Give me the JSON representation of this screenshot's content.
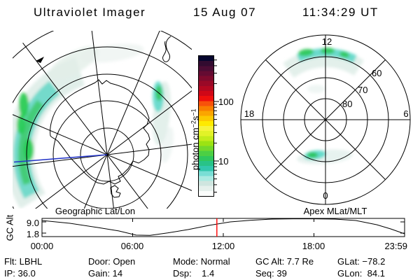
{
  "header": {
    "title": "Ultraviolet Imager",
    "date": "15 Aug 07",
    "time": "11:34:29 UT"
  },
  "left_plot": {
    "title": "Geographic Lat/Lon"
  },
  "right_plot": {
    "title": "Apex MLat/MLT",
    "mlt_top": "12",
    "mlt_left": "18",
    "mlt_right": "6",
    "mlt_bottom": "0",
    "mlat_rings": [
      "60",
      "70",
      "80"
    ]
  },
  "colorbar": {
    "unit_prefix": "photon cm",
    "unit_sup1": "−2",
    "unit_mid": "s",
    "unit_sup2": "−1",
    "tick_upper": "100",
    "tick_lower": "10"
  },
  "strip_chart": {
    "ylabel": "GC Alt",
    "ytick_upper": "9.0",
    "ytick_lower": "1.8",
    "xticks": [
      "00:00",
      "06:00",
      "12:00",
      "18:00",
      "23:59"
    ],
    "cursor_ut": "11:34:29"
  },
  "status": {
    "columns": [
      {
        "top": "Flt: LBHL",
        "bottom": "IP: 36.0"
      },
      {
        "top": "Door: Open",
        "bottom": "Gain: 14"
      },
      {
        "top": "Mode: Normal",
        "bottom": "Dsp:    1.4"
      },
      {
        "top": "GC Alt: 7.7 Re",
        "bottom": "Seq: 39"
      },
      {
        "top": "GLat: −78.2",
        "bottom": "GLon:  84.1"
      }
    ]
  },
  "chart_data": [
    {
      "type": "line",
      "title": "GC Alt vs UT",
      "xlabel": "UT",
      "ylabel": "GC Alt (Re)",
      "xlim": [
        0,
        24
      ],
      "x": [
        0,
        1.85,
        3.69,
        5.08,
        6.23,
        7.15,
        8.31,
        9.69,
        11.08,
        12.46,
        13.85,
        15.23,
        16.62,
        18.0,
        19.38,
        20.77,
        22.15,
        23.08,
        23.98
      ],
      "y": [
        9.9,
        8.1,
        5.4,
        3.2,
        0.5,
        0.3,
        1.9,
        4.1,
        6.8,
        9.0,
        10.1,
        10.8,
        11.0,
        11.0,
        10.8,
        9.9,
        7.2,
        4.5,
        1.4
      ],
      "yticks": [
        9.0,
        1.8
      ],
      "cursor_x": 11.575,
      "cursor_color": "#ff0000"
    },
    {
      "type": "heatmap",
      "title": "Geographic Lat/Lon",
      "legend_ticks": [
        100,
        10
      ],
      "notes": "Southern-hemisphere auroral UV image over Antarctica; bright cyan-green band on left limb, smaller patch upper right"
    },
    {
      "type": "heatmap",
      "title": "Apex MLat/MLT",
      "rings_mlat": [
        80,
        70,
        60,
        50
      ],
      "mlt_spokes": [
        0,
        3,
        6,
        9,
        12,
        15,
        18,
        21
      ],
      "notes": "Auroral oval arc near 60 MLat at 12 MLT and patch near 70-80 MLat toward 0 MLT"
    }
  ],
  "colors": {
    "cursor": "#ff0000",
    "ground_track": "#2637c8",
    "emission_green": "#2fc657",
    "emission_cyan": "#58d8c6",
    "emission_pale": "#dcece6"
  }
}
